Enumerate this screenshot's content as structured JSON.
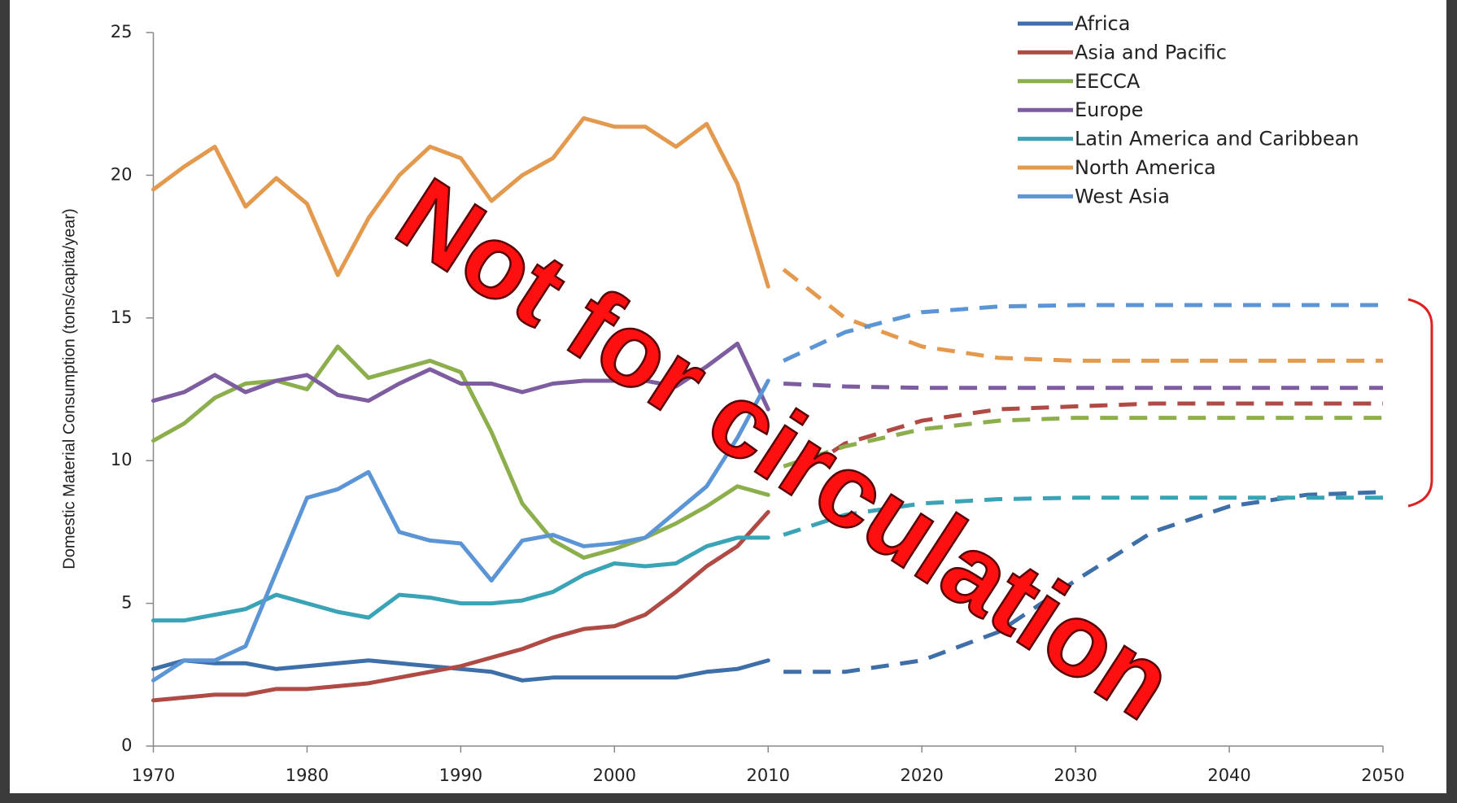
{
  "chart_data": {
    "type": "line",
    "y_label": "Domestic Material Consumption (tons/capita/year)",
    "watermark": "Not for circulation",
    "x": [
      1970,
      1972,
      1974,
      1976,
      1978,
      1980,
      1982,
      1984,
      1986,
      1988,
      1990,
      1992,
      1994,
      1996,
      1998,
      2000,
      2002,
      2004,
      2006,
      2008,
      2010
    ],
    "projection_x": [
      2011,
      2015,
      2020,
      2025,
      2030,
      2035,
      2040,
      2045,
      2050
    ],
    "xlim": [
      1970,
      2050
    ],
    "xticks": [
      1970,
      1980,
      1990,
      2000,
      2010,
      2020,
      2030,
      2040,
      2050
    ],
    "ylim": [
      0,
      25
    ],
    "yticks": [
      0,
      5,
      10,
      15,
      20,
      25
    ],
    "legend": "top-right",
    "series": [
      {
        "name": "Africa",
        "color": "#3e6fa8",
        "values": [
          2.7,
          3.0,
          2.9,
          2.9,
          2.7,
          2.8,
          2.9,
          3.0,
          2.9,
          2.8,
          2.7,
          2.6,
          2.3,
          2.4,
          2.4,
          2.4,
          2.4,
          2.4,
          2.6,
          2.7,
          3.0
        ],
        "projection": [
          2.6,
          2.6,
          3.0,
          4.0,
          5.8,
          7.5,
          8.4,
          8.8,
          8.9
        ]
      },
      {
        "name": "Asia and Pacific",
        "color": "#b04a45",
        "values": [
          1.6,
          1.7,
          1.8,
          1.8,
          2.0,
          2.0,
          2.1,
          2.2,
          2.4,
          2.6,
          2.8,
          3.1,
          3.4,
          3.8,
          4.1,
          4.2,
          4.6,
          5.4,
          6.3,
          7.0,
          8.2
        ],
        "projection": [
          9.2,
          10.6,
          11.4,
          11.8,
          11.9,
          12.0,
          12.0,
          12.0,
          12.0
        ]
      },
      {
        "name": "EECCA",
        "color": "#8cae4c",
        "values": [
          10.7,
          11.3,
          12.2,
          12.7,
          12.8,
          12.5,
          14.0,
          12.9,
          13.2,
          13.5,
          13.1,
          11.0,
          8.5,
          7.2,
          6.6,
          6.9,
          7.3,
          7.8,
          8.4,
          9.1,
          8.8
        ],
        "projection": [
          9.8,
          10.5,
          11.1,
          11.4,
          11.5,
          11.5,
          11.5,
          11.5,
          11.5
        ]
      },
      {
        "name": "Europe",
        "color": "#7d5ca0",
        "values": [
          12.1,
          12.4,
          13.0,
          12.4,
          12.8,
          13.0,
          12.3,
          12.1,
          12.7,
          13.2,
          12.7,
          12.7,
          12.4,
          12.7,
          12.8,
          12.8,
          12.8,
          12.6,
          13.3,
          14.1,
          11.8
        ],
        "projection": [
          12.7,
          12.6,
          12.55,
          12.55,
          12.55,
          12.55,
          12.55,
          12.55,
          12.55
        ]
      },
      {
        "name": "Latin America and Caribbean",
        "color": "#3aa3b5",
        "values": [
          4.4,
          4.4,
          4.6,
          4.8,
          5.3,
          5.0,
          4.7,
          4.5,
          5.3,
          5.2,
          5.0,
          5.0,
          5.1,
          5.4,
          6.0,
          6.4,
          6.3,
          6.4,
          7.0,
          7.3,
          7.3
        ],
        "projection": [
          7.4,
          8.1,
          8.5,
          8.65,
          8.7,
          8.7,
          8.7,
          8.7,
          8.7
        ]
      },
      {
        "name": "North America",
        "color": "#e39a4f",
        "values": [
          19.5,
          20.3,
          21.0,
          18.9,
          19.9,
          19.0,
          16.5,
          18.5,
          20.0,
          21.0,
          20.6,
          19.1,
          20.0,
          20.6,
          22.0,
          21.7,
          21.7,
          21.0,
          21.8,
          19.7,
          16.1
        ],
        "projection": [
          16.7,
          15.0,
          14.0,
          13.6,
          13.5,
          13.5,
          13.5,
          13.5,
          13.5
        ]
      },
      {
        "name": "West Asia",
        "color": "#5b95d6",
        "values": [
          2.3,
          3.0,
          3.0,
          3.5,
          6.1,
          8.7,
          9.0,
          9.6,
          7.5,
          7.2,
          7.1,
          5.8,
          7.2,
          7.4,
          7.0,
          7.1,
          7.3,
          8.2,
          9.1,
          10.8,
          12.8
        ],
        "projection": [
          13.5,
          14.5,
          15.2,
          15.4,
          15.45,
          15.45,
          15.45,
          15.45,
          15.45
        ]
      }
    ]
  }
}
